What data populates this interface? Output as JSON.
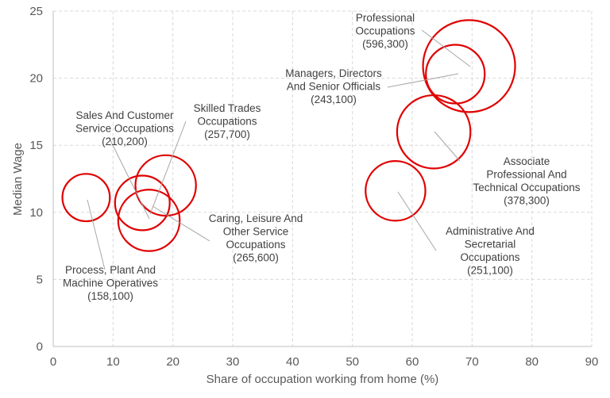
{
  "chart_data": {
    "type": "scatter",
    "variant": "bubble",
    "title": "",
    "xlabel": "Share of occupation working from home (%)",
    "ylabel": "Median Wage",
    "xlim": [
      0,
      90
    ],
    "ylim": [
      0,
      25
    ],
    "xticks": [
      0,
      10,
      20,
      30,
      40,
      50,
      60,
      70,
      80,
      90
    ],
    "yticks": [
      0,
      5,
      10,
      15,
      20,
      25
    ],
    "grid": true,
    "legend": "none",
    "bubble_color": "#e00000",
    "points": [
      {
        "x": 69.5,
        "y": 20.9,
        "size": 596300,
        "label_lines": [
          "Professional",
          "Occupations",
          "(596,300)"
        ]
      },
      {
        "x": 67.2,
        "y": 20.3,
        "size": 243100,
        "label_lines": [
          "Managers, Directors",
          "And Senior Officials",
          "(243,100)"
        ]
      },
      {
        "x": 63.6,
        "y": 16.0,
        "size": 378300,
        "label_lines": [
          "Associate",
          "Professional And",
          "Technical Occupations",
          "(378,300)"
        ]
      },
      {
        "x": 57.2,
        "y": 11.6,
        "size": 251100,
        "label_lines": [
          "Administrative And",
          "Secretarial",
          "Occupations",
          "(251,100)"
        ]
      },
      {
        "x": 18.8,
        "y": 12.0,
        "size": 257700,
        "label_lines": [
          "Skilled Trades",
          "Occupations",
          "(257,700)"
        ]
      },
      {
        "x": 14.9,
        "y": 10.7,
        "size": 210200,
        "label_lines": [
          "Sales And Customer",
          "Service Occupations",
          "(210,200)"
        ]
      },
      {
        "x": 16.0,
        "y": 9.4,
        "size": 265600,
        "label_lines": [
          "Caring, Leisure And",
          "Other Service",
          "Occupations",
          "(265,600)"
        ]
      },
      {
        "x": 5.5,
        "y": 11.1,
        "size": 158100,
        "label_lines": [
          "Process, Plant And",
          "Machine Operatives",
          "(158,100)"
        ]
      }
    ]
  }
}
